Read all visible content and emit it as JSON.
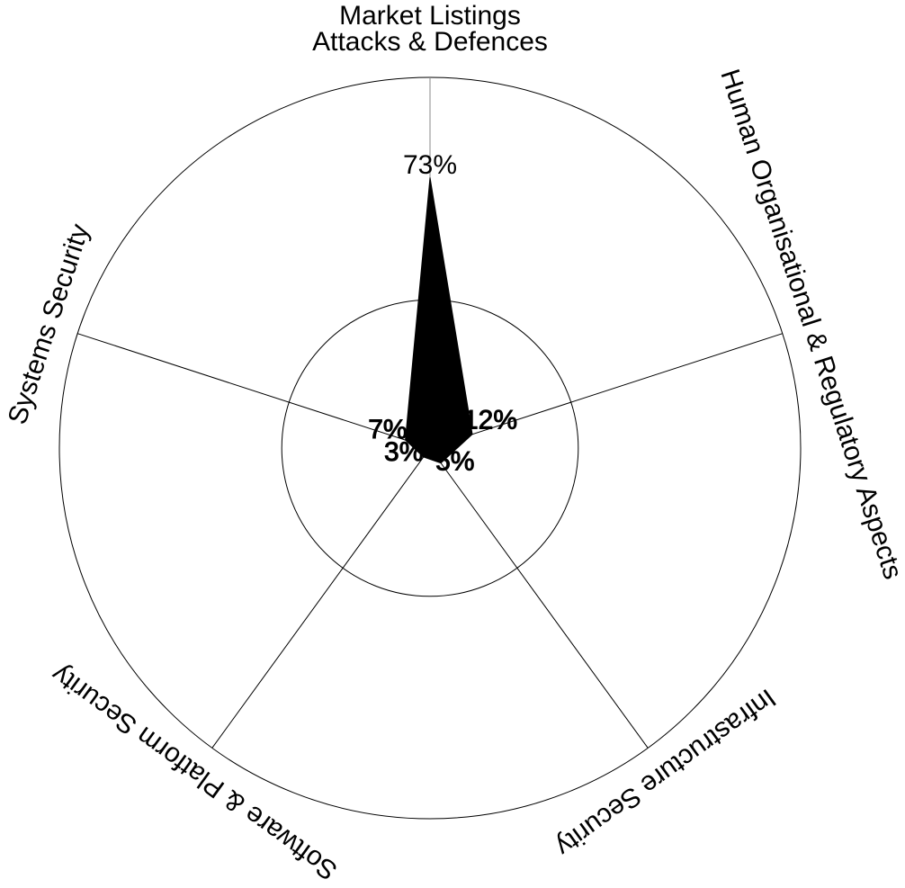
{
  "chart_data": {
    "type": "radar",
    "title": "Market Listings",
    "ylim": [
      0,
      100
    ],
    "inner_ring": 40,
    "categories": [
      {
        "label": "Attacks & Defences",
        "value": 73,
        "value_label": "73%"
      },
      {
        "label": "Human Organisational & Regulatory Aspects",
        "value": 12,
        "value_label": "12%"
      },
      {
        "label": "Infrastructure Security",
        "value": 5,
        "value_label": "5%"
      },
      {
        "label": "Software & Platform Security",
        "value": 3,
        "value_label": "3%"
      },
      {
        "label": "Systems Security",
        "value": 7,
        "value_label": "7%"
      }
    ],
    "fill_color": "#000000",
    "grid": true
  }
}
